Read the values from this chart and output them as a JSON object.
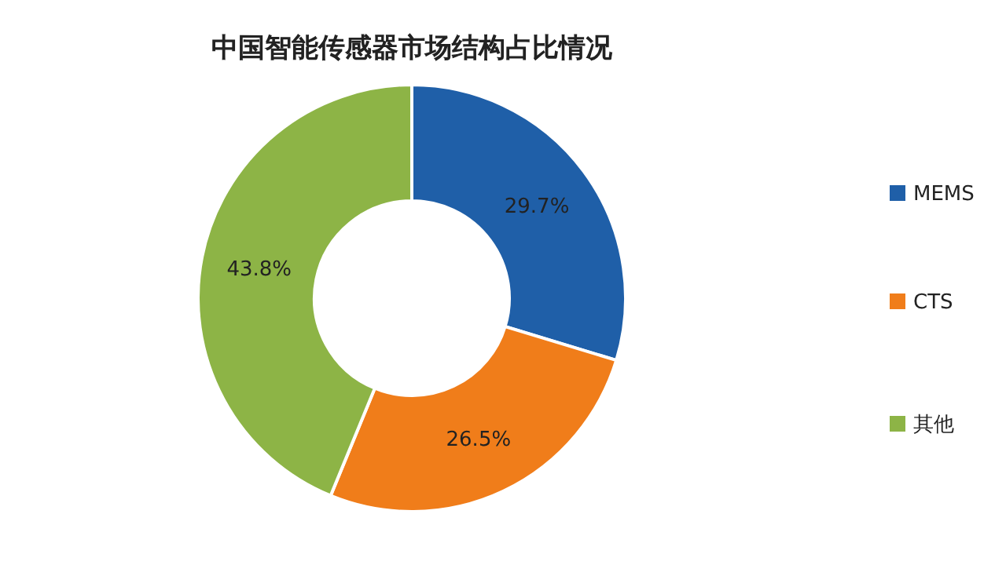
{
  "chart_data": {
    "type": "donut",
    "title": "中国智能传感器市场结构占比情况",
    "categories": [
      "MEMS",
      "CTS",
      "其他"
    ],
    "values": [
      29.7,
      26.5,
      43.8
    ],
    "colors": [
      "#1f5fa8",
      "#f07d1a",
      "#8db446"
    ],
    "value_labels": [
      "29.7%",
      "26.5%",
      "43.8%"
    ],
    "legend": "right"
  }
}
